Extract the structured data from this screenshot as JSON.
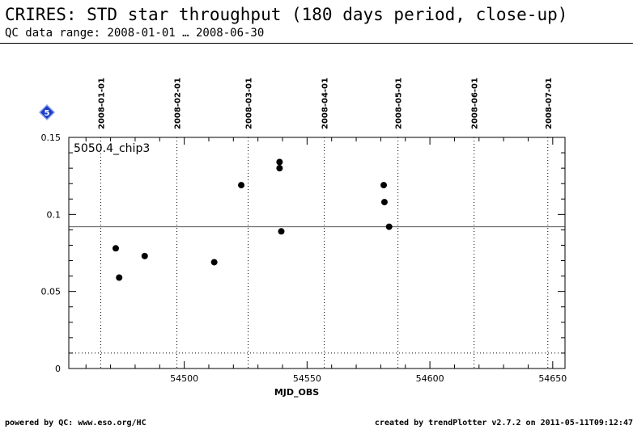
{
  "header": {
    "title": "CRIRES: STD star throughput (180 days period, close-up)",
    "subtitle": "QC data range: 2008-01-01 … 2008-06-30"
  },
  "footer": {
    "left": "powered by QC: www.eso.org/HC",
    "right": "created by trendPlotter v2.7.2 on 2011-05-11T09:12:47"
  },
  "chart_data": {
    "type": "scatter",
    "panel_label": "5050.4_chip3",
    "badge": "5",
    "xlabel": "MJD_OBS",
    "ylabel": "",
    "xlim": [
      54453,
      54655
    ],
    "ylim": [
      0,
      0.15
    ],
    "x_ticks": [
      54500,
      54550,
      54600,
      54650
    ],
    "y_ticks": [
      0,
      0.05,
      0.1,
      0.15
    ],
    "y_tick_labels": [
      "0",
      "0.05",
      "0.1",
      "0.15"
    ],
    "date_ticks": [
      {
        "mjd": 54466,
        "label": "2008-01-01"
      },
      {
        "mjd": 54497,
        "label": "2008-02-01"
      },
      {
        "mjd": 54526,
        "label": "2008-03-01"
      },
      {
        "mjd": 54557,
        "label": "2008-04-01"
      },
      {
        "mjd": 54587,
        "label": "2008-05-01"
      },
      {
        "mjd": 54618,
        "label": "2008-06-01"
      },
      {
        "mjd": 54648,
        "label": "2008-07-01"
      }
    ],
    "reference_line": 0.092,
    "lower_line": 0.01,
    "points": [
      {
        "x": 54472.1,
        "y": 0.078
      },
      {
        "x": 54473.5,
        "y": 0.059
      },
      {
        "x": 54483.9,
        "y": 0.073
      },
      {
        "x": 54512.2,
        "y": 0.069
      },
      {
        "x": 54523.2,
        "y": 0.119
      },
      {
        "x": 54538.8,
        "y": 0.134
      },
      {
        "x": 54538.8,
        "y": 0.13
      },
      {
        "x": 54539.5,
        "y": 0.089
      },
      {
        "x": 54581.2,
        "y": 0.119
      },
      {
        "x": 54581.5,
        "y": 0.108
      },
      {
        "x": 54583.4,
        "y": 0.092
      }
    ],
    "colors": {
      "points": "#000000",
      "badge": "#1a3ccc"
    }
  }
}
